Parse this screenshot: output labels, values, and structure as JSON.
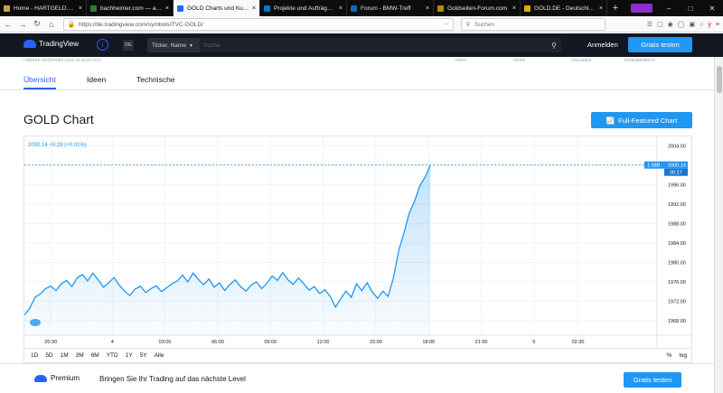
{
  "browser": {
    "tabs": [
      {
        "label": "Home - HARTGELD.com",
        "color": "#c8a04b"
      },
      {
        "label": "bachheimer.com — aktu",
        "color": "#2e7d32"
      },
      {
        "label": "GOLD Charts und Kurse",
        "color": "#2962ff",
        "active": true
      },
      {
        "label": "Projekte und Aufträge fü",
        "color": "#0277bd"
      },
      {
        "label": "Forum - BMW-Treff",
        "color": "#1565c0"
      },
      {
        "label": "Goldseiten-Forum.com",
        "color": "#b8860b"
      },
      {
        "label": "GOLD.DE - Deutschlands",
        "color": "#e6a700"
      }
    ],
    "url": "https://de.tradingview.com/symbols/TVC-GOLD/",
    "search_placeholder": "Suchen"
  },
  "header": {
    "logo": "TradingView",
    "lang": "DE",
    "ticker_select": "Ticker, Name",
    "search_placeholder": "Suche",
    "login": "Anmelden",
    "cta": "Gratis testen"
  },
  "symbol_row": {
    "status": "• BÖRSE GEÖFFNET (AUS 04:16 (9 UTC)",
    "cols": [
      "PREV",
      "OPEN",
      "VOLUMEN",
      "TAGESBEREICH"
    ]
  },
  "subtabs": [
    "Übersicht",
    "Ideen",
    "Technische"
  ],
  "page_title": "GOLD Chart",
  "full_featured_button": "Full-Featured Chart",
  "chart_data": {
    "type": "area",
    "legend": "2000.14  +0.29 (+0.01%)",
    "last_price_label": "2000.14",
    "countdown_label": "00:27",
    "ratio_label": "1.58B",
    "ylim": [
      1965,
      2006
    ],
    "y_ticks": [
      1968,
      1972,
      1976,
      1980,
      1984,
      1988,
      1992,
      1996,
      2000,
      2004
    ],
    "y_tick_labels": [
      "1968.00",
      "1972.00",
      "1976.00",
      "1980.00",
      "1984.00",
      "1988.00",
      "1992.00",
      "1996.00",
      "2000.00",
      "2004.00"
    ],
    "x_ticks": [
      "20:30",
      "4",
      "03:00",
      "06:00",
      "09:00",
      "12:00",
      "15:00",
      "18:00",
      "21:00",
      "5",
      "02:30"
    ],
    "x_tick_hours": [
      20.5,
      24,
      27,
      30,
      33,
      36,
      39,
      42,
      45,
      48,
      50.5
    ],
    "x_range_hours": [
      19,
      55
    ],
    "series": [
      {
        "x": [
          19,
          19.3,
          19.6,
          19.9,
          20.2,
          20.5,
          20.8,
          21.1,
          21.4,
          21.7,
          22,
          22.3,
          22.6,
          22.9,
          23.2,
          23.5,
          23.8,
          24.1,
          24.4,
          24.7,
          25,
          25.3,
          25.6,
          25.9,
          26.2,
          26.5,
          26.8,
          27.1,
          27.4,
          27.7,
          28,
          28.3,
          28.6,
          28.9,
          29.2,
          29.5,
          29.8,
          30.1,
          30.4,
          30.7,
          31,
          31.3,
          31.6,
          31.9,
          32.2,
          32.5,
          32.8,
          33.1,
          33.4,
          33.7,
          34,
          34.3,
          34.6,
          34.9,
          35.2,
          35.5,
          35.8,
          36.1,
          36.4,
          36.7,
          37,
          37.3,
          37.6,
          37.9,
          38.2,
          38.5,
          38.8,
          39.1,
          39.4,
          39.7,
          40,
          40.3,
          40.6,
          40.9,
          41.2,
          41.5,
          41.8,
          42.1
        ],
        "y": [
          1969.2,
          1970.5,
          1972.8,
          1973.5,
          1974.6,
          1975.1,
          1974.2,
          1975.6,
          1976.3,
          1975.0,
          1976.8,
          1977.5,
          1976.2,
          1977.8,
          1976.4,
          1974.9,
          1975.8,
          1976.9,
          1975.3,
          1974.1,
          1973.2,
          1974.5,
          1975.1,
          1973.8,
          1974.6,
          1975.2,
          1974.0,
          1974.8,
          1975.6,
          1976.2,
          1977.4,
          1976.0,
          1977.8,
          1976.5,
          1975.4,
          1976.6,
          1974.9,
          1975.8,
          1974.2,
          1975.5,
          1976.4,
          1975.0,
          1974.1,
          1975.3,
          1976.0,
          1974.6,
          1975.7,
          1977.2,
          1976.3,
          1977.9,
          1976.4,
          1975.5,
          1976.8,
          1975.6,
          1974.3,
          1975.0,
          1973.6,
          1974.4,
          1973.0,
          1970.8,
          1972.5,
          1974.1,
          1972.8,
          1975.6,
          1974.2,
          1975.8,
          1973.9,
          1972.6,
          1974.1,
          1973.0,
          1976.8,
          1982.5,
          1986.1,
          1990.2,
          1992.6,
          1995.8,
          1997.6,
          2000.1
        ]
      }
    ]
  },
  "ranges": [
    "1D",
    "5D",
    "1M",
    "3M",
    "6M",
    "YTD",
    "1Y",
    "5Y",
    "Alle"
  ],
  "range_right": [
    "%",
    "log"
  ],
  "premium": {
    "logo": "Premium",
    "text": "Bringen Sie Ihr Trading auf das nächste Level",
    "cta": "Gratis testen"
  },
  "colors": {
    "accent": "#2196f3",
    "line": "#2196f3",
    "header_bg": "#131722"
  }
}
